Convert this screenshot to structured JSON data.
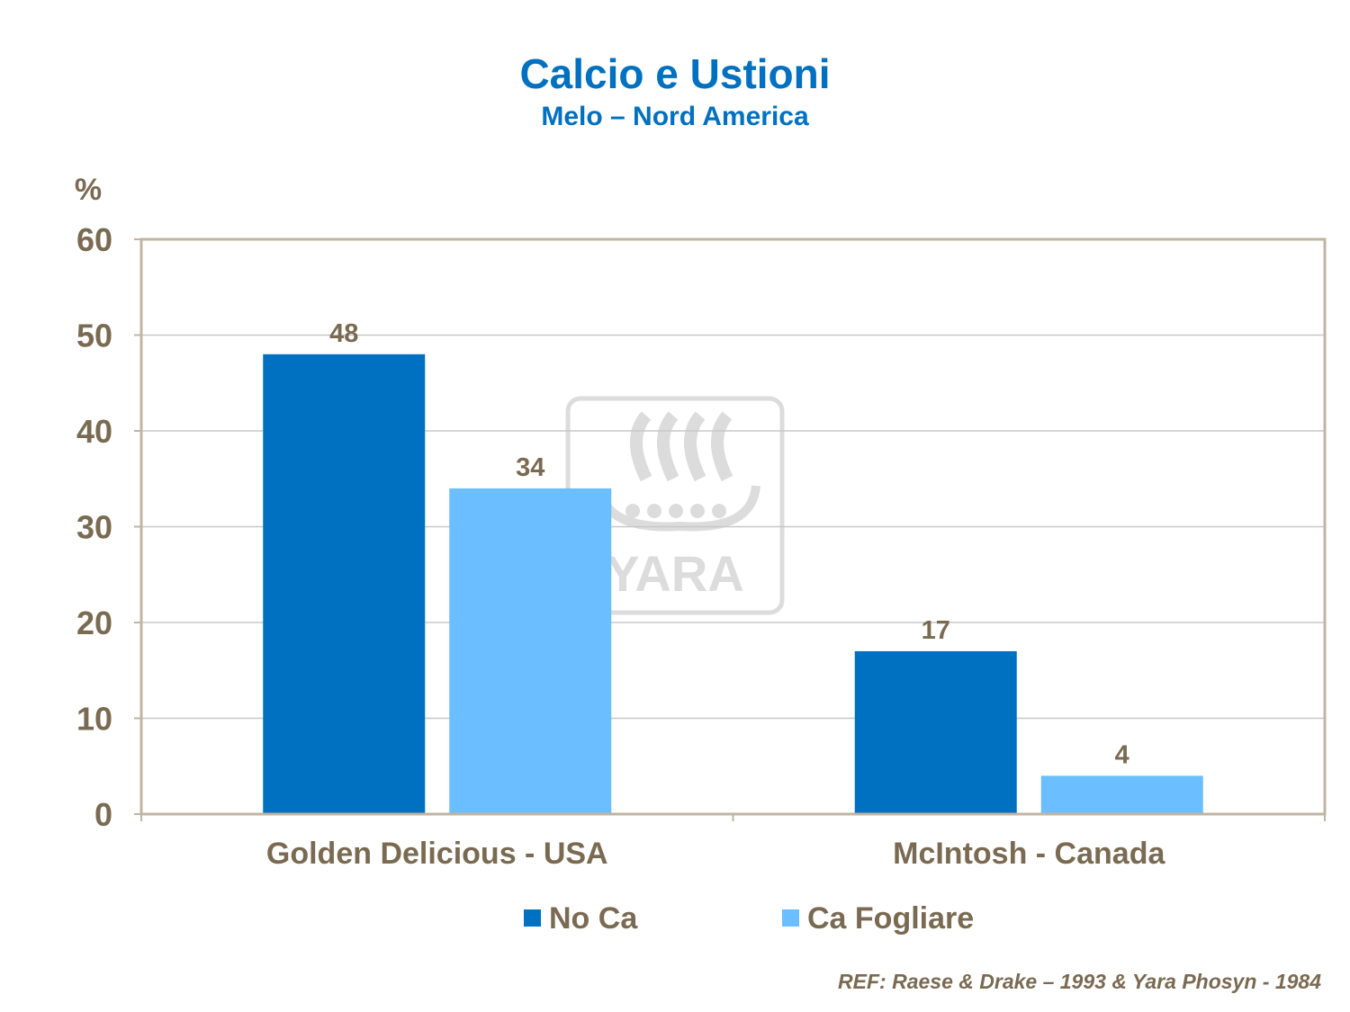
{
  "chart_data": {
    "type": "bar",
    "title": "Calcio e Ustioni",
    "subtitle": "Melo – Nord America",
    "ylabel": "%",
    "xlabel": "",
    "categories": [
      "Golden Delicious - USA",
      "McIntosh - Canada"
    ],
    "series": [
      {
        "name": "No Ca",
        "values": [
          48,
          17
        ],
        "color": "#0070C0"
      },
      {
        "name": "Ca Fogliare",
        "values": [
          34,
          4
        ],
        "color": "#6BBEFF"
      }
    ],
    "ylim": [
      0,
      60
    ],
    "yticks": [
      0,
      10,
      20,
      30,
      40,
      50,
      60
    ],
    "grid": true,
    "data_labels": true,
    "legend_position": "bottom",
    "watermark": "YARA",
    "text_color": "#7A6A52",
    "axis_color": "#BFB5A2",
    "grid_color": "#C8C8C8"
  },
  "footer": {
    "reference": "REF: Raese & Drake – 1993 & Yara Phosyn - 1984"
  }
}
